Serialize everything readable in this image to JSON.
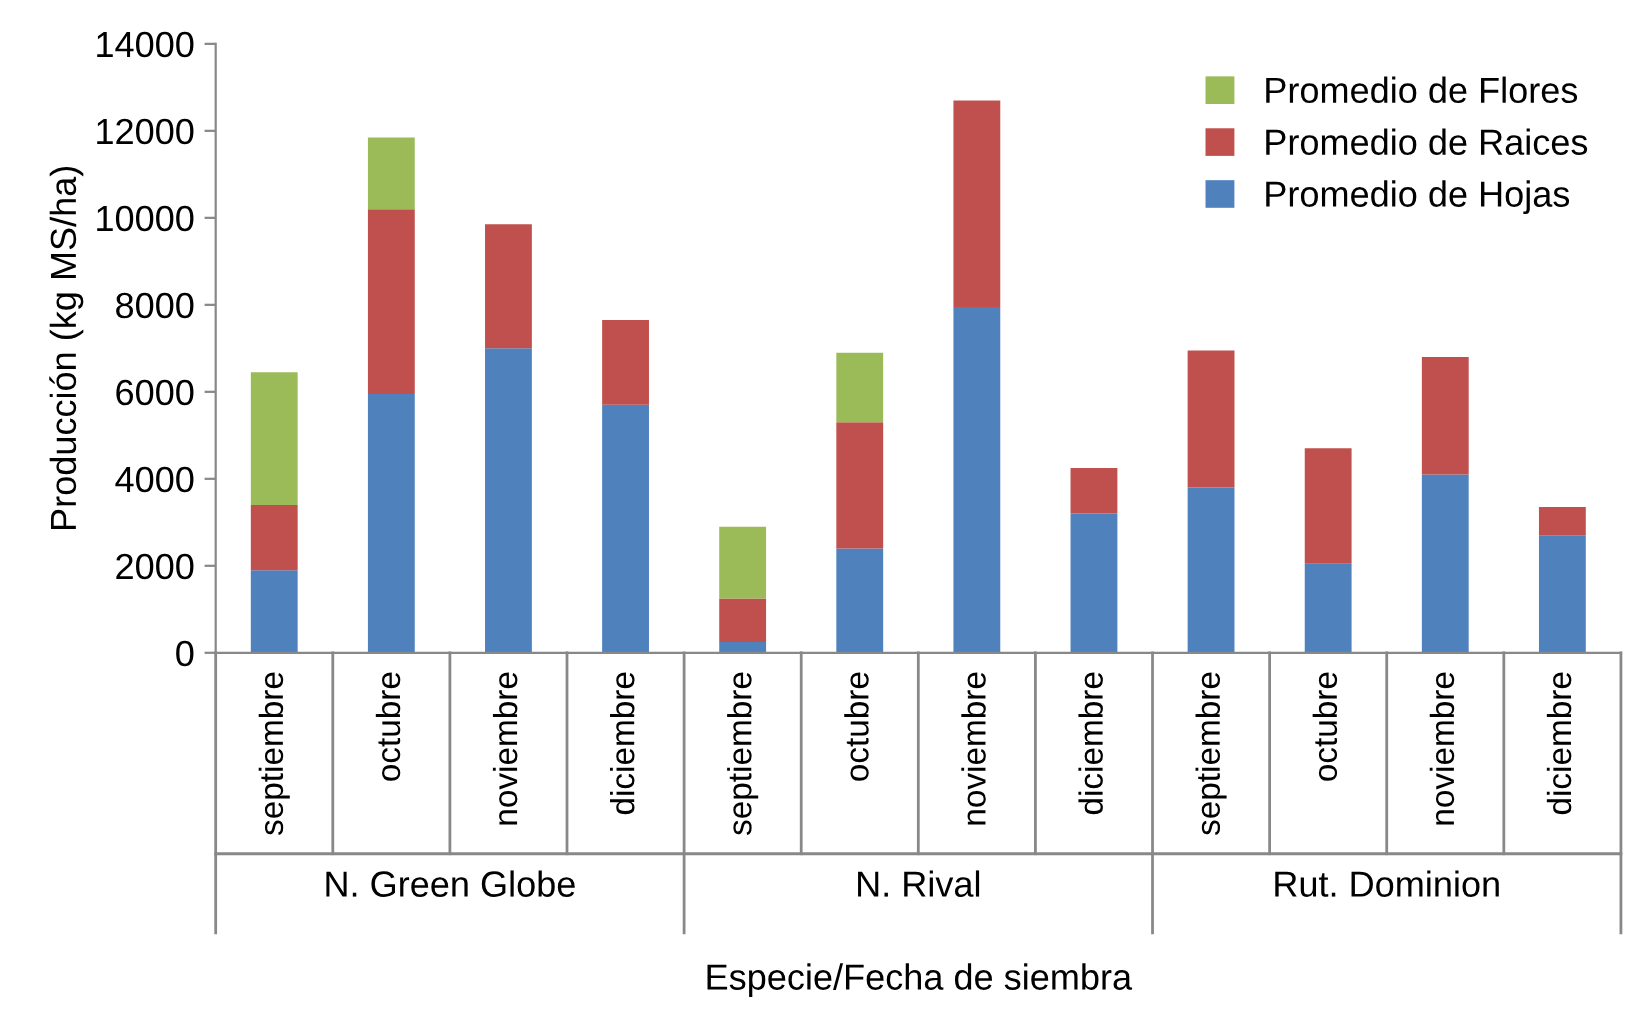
{
  "chart_data": {
    "type": "bar",
    "stacked": true,
    "xlabel": "Especie/Fecha de siembra",
    "ylabel": "Producción (kg MS/ha)",
    "categories": [
      "septiembre",
      "octubre",
      "noviembre",
      "diciembre",
      "septiembre",
      "octubre",
      "noviembre",
      "diciembre",
      "septiembre",
      "octubre",
      "noviembre",
      "diciembre"
    ],
    "annotations": [
      "N. Green Globe",
      "N. Rival",
      "Rut. Dominion"
    ],
    "series": [
      {
        "name": "Promedio de Hojas",
        "color": "#4f81bd",
        "values": [
          1900,
          5950,
          7000,
          5700,
          250,
          2400,
          7950,
          3200,
          3800,
          2050,
          4100,
          2700
        ]
      },
      {
        "name": "Promedio de Raices",
        "color": "#c0504d",
        "values": [
          1500,
          4250,
          2850,
          1950,
          1000,
          2900,
          4750,
          1050,
          3150,
          2650,
          2700,
          650
        ]
      },
      {
        "name": "Promedio de Flores",
        "color": "#9bbb59",
        "values": [
          3050,
          1650,
          0,
          0,
          1650,
          1600,
          0,
          0,
          0,
          0,
          0,
          0
        ]
      }
    ],
    "ylim": [
      0,
      14000
    ],
    "yticks": [
      0,
      2000,
      4000,
      6000,
      8000,
      10000,
      12000,
      14000
    ],
    "grid": false,
    "legend": "top right"
  }
}
